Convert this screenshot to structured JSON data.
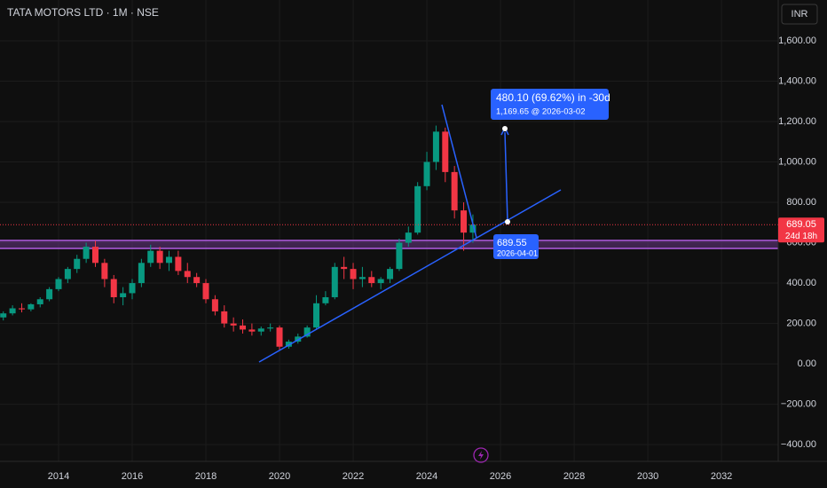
{
  "chart_data": {
    "type": "candlestick",
    "title": "TATA MOTORS LTD · 1M · NSE",
    "currency": "INR",
    "up_color": "#089981",
    "down_color": "#f23645",
    "grid": true,
    "xlim": [
      2012.41,
      2033.54
    ],
    "ylim": [
      -483,
      1802
    ],
    "xticks": [
      2014,
      2016,
      2018,
      2020,
      2022,
      2024,
      2026,
      2028,
      2030,
      2032
    ],
    "yticks": [
      {
        "value": -400,
        "label": "−400.00"
      },
      {
        "value": -200,
        "label": "−200.00"
      },
      {
        "value": 0,
        "label": "0.00"
      },
      {
        "value": 200,
        "label": "200.00"
      },
      {
        "value": 400,
        "label": "400.00"
      },
      {
        "value": 600,
        "label": "600.00"
      },
      {
        "value": 800,
        "label": "800.00"
      },
      {
        "value": 1000,
        "label": "1,000.00"
      },
      {
        "value": 1200,
        "label": "1,200.00"
      },
      {
        "value": 1400,
        "label": "1,400.00"
      },
      {
        "value": 1600,
        "label": "1,600.00"
      }
    ],
    "x": [
      2012.5,
      2012.75,
      2013.0,
      2013.25,
      2013.5,
      2013.75,
      2014.0,
      2014.25,
      2014.5,
      2014.75,
      2015.0,
      2015.25,
      2015.5,
      2015.75,
      2016.0,
      2016.25,
      2016.5,
      2016.75,
      2017.0,
      2017.25,
      2017.5,
      2017.75,
      2018.0,
      2018.25,
      2018.5,
      2018.75,
      2019.0,
      2019.25,
      2019.5,
      2019.75,
      2020.0,
      2020.25,
      2020.5,
      2020.75,
      2021.0,
      2021.25,
      2021.5,
      2021.75,
      2022.0,
      2022.25,
      2022.5,
      2022.75,
      2023.0,
      2023.25,
      2023.5,
      2023.75,
      2024.0,
      2024.25,
      2024.5,
      2024.75,
      2025.0,
      2025.25
    ],
    "open": [
      230,
      250,
      275,
      270,
      295,
      320,
      370,
      420,
      470,
      520,
      580,
      500,
      420,
      330,
      350,
      400,
      500,
      560,
      500,
      530,
      460,
      430,
      400,
      320,
      260,
      200,
      190,
      170,
      160,
      175,
      180,
      85,
      110,
      135,
      180,
      300,
      330,
      480,
      470,
      420,
      430,
      400,
      420,
      470,
      600,
      650,
      880,
      1000,
      1150,
      950,
      760,
      650
    ],
    "high": [
      260,
      290,
      300,
      300,
      330,
      380,
      430,
      480,
      540,
      600,
      610,
      520,
      440,
      380,
      420,
      520,
      590,
      580,
      560,
      560,
      500,
      450,
      420,
      340,
      290,
      230,
      220,
      200,
      185,
      200,
      190,
      120,
      150,
      190,
      340,
      360,
      500,
      530,
      500,
      480,
      460,
      430,
      480,
      620,
      680,
      900,
      1050,
      1180,
      1170,
      980,
      800,
      740
    ],
    "low": [
      215,
      240,
      255,
      260,
      280,
      310,
      360,
      400,
      450,
      500,
      480,
      380,
      300,
      290,
      320,
      380,
      480,
      470,
      460,
      440,
      400,
      380,
      300,
      240,
      180,
      160,
      150,
      140,
      140,
      160,
      65,
      75,
      100,
      130,
      170,
      290,
      320,
      420,
      370,
      380,
      380,
      370,
      400,
      460,
      580,
      640,
      860,
      960,
      900,
      720,
      560,
      600
    ],
    "close": [
      250,
      275,
      270,
      295,
      320,
      370,
      420,
      470,
      520,
      580,
      500,
      420,
      330,
      350,
      400,
      500,
      560,
      500,
      530,
      460,
      430,
      400,
      320,
      260,
      200,
      190,
      170,
      160,
      175,
      180,
      85,
      110,
      135,
      180,
      300,
      330,
      480,
      470,
      420,
      430,
      400,
      420,
      470,
      600,
      650,
      880,
      1000,
      1150,
      950,
      760,
      650,
      689.05
    ],
    "last_price": 689.05,
    "countdown": "24d 18h",
    "annotations": {
      "projection_change": "480.10 (69.62%) in -30d",
      "projection_target": "1,169.65 @ 2026-03-02",
      "anchor_price": "689.55",
      "anchor_date": "2026-04-01"
    }
  }
}
